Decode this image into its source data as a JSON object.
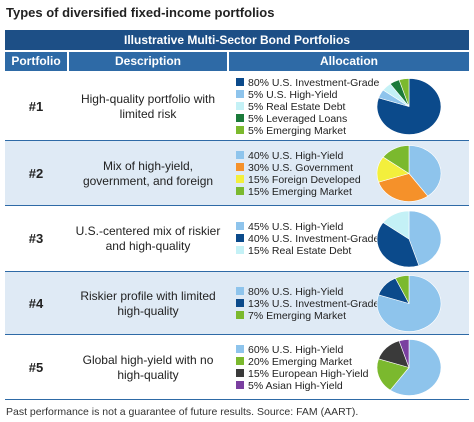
{
  "title": "Types of diversified fixed-income portfolios",
  "table": {
    "caption": "Illustrative Multi-Sector Bond Portfolios",
    "headers": [
      "Portfolio",
      "Description",
      "Allocation"
    ],
    "rows": [
      {
        "portfolio": "#1",
        "description": "High-quality portfolio with limited risk",
        "allocation": [
          {
            "value": 80,
            "label": "80% U.S. Investment-Grade",
            "color": "#0b4a8b"
          },
          {
            "value": 5,
            "label": "5% U.S. High-Yield",
            "color": "#8ec4ec"
          },
          {
            "value": 5,
            "label": "5% Real Estate Debt",
            "color": "#c4f1f6"
          },
          {
            "value": 5,
            "label": "5% Leveraged Loans",
            "color": "#1b7a3a"
          },
          {
            "value": 5,
            "label": "5% Emerging Market",
            "color": "#7bb92e"
          }
        ]
      },
      {
        "portfolio": "#2",
        "description": "Mix of high-yield, government, and foreign",
        "allocation": [
          {
            "value": 40,
            "label": "40% U.S. High-Yield",
            "color": "#8ec4ec"
          },
          {
            "value": 30,
            "label": "30% U.S. Government",
            "color": "#f5912a"
          },
          {
            "value": 15,
            "label": "15% Foreign Developed",
            "color": "#f3ef3c"
          },
          {
            "value": 15,
            "label": "15% Emerging Market",
            "color": "#7bb92e"
          }
        ]
      },
      {
        "portfolio": "#3",
        "description": "U.S.-centered mix of riskier and high-quality",
        "allocation": [
          {
            "value": 45,
            "label": "45% U.S. High-Yield",
            "color": "#8ec4ec"
          },
          {
            "value": 40,
            "label": "40% U.S. Investment-Grade",
            "color": "#0b4a8b"
          },
          {
            "value": 15,
            "label": "15% Real Estate Debt",
            "color": "#c4f1f6"
          }
        ]
      },
      {
        "portfolio": "#4",
        "description": "Riskier profile with limited high-quality",
        "allocation": [
          {
            "value": 80,
            "label": "80% U.S. High-Yield",
            "color": "#8ec4ec"
          },
          {
            "value": 13,
            "label": "13% U.S. Investment-Grade",
            "color": "#0b4a8b"
          },
          {
            "value": 7,
            "label": "7% Emerging Market",
            "color": "#7bb92e"
          }
        ]
      },
      {
        "portfolio": "#5",
        "description": "Global high-yield with no high-quality",
        "allocation": [
          {
            "value": 60,
            "label": "60% U.S. High-Yield",
            "color": "#8ec4ec"
          },
          {
            "value": 20,
            "label": "20% Emerging Market",
            "color": "#7bb92e"
          },
          {
            "value": 15,
            "label": "15% European High-Yield",
            "color": "#3a3a3a"
          },
          {
            "value": 5,
            "label": "5% Asian High-Yield",
            "color": "#7a3fa0"
          }
        ]
      }
    ]
  },
  "footnote": "Past performance is not a guarantee of future results. Source: FAM (AART)."
}
